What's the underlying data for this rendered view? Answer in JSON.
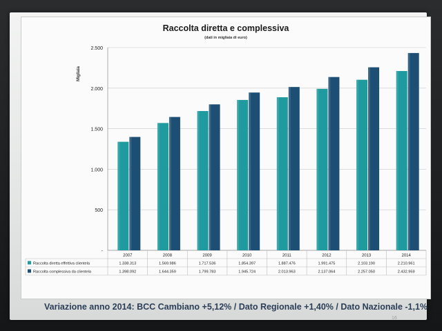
{
  "chart_data": {
    "type": "bar",
    "title": "Raccolta diretta e complessiva",
    "subtitle": "(dati in migliaia di euro)",
    "ylabel": "Migliaia",
    "xlabel": "",
    "ylim": [
      0,
      2500
    ],
    "yticks": [
      0,
      500,
      1000,
      1500,
      2000,
      2500
    ],
    "ytick_labels": [
      "-",
      "500",
      "1.000",
      "1.500",
      "2.000",
      "2.500"
    ],
    "grid": true,
    "legend_placement": "bottom-table",
    "categories": [
      "2007",
      "2008",
      "2009",
      "2010",
      "2011",
      "2012",
      "2013",
      "2014"
    ],
    "series": [
      {
        "name": "Raccolta diretta effettiva clientela",
        "color": "#1f9a9e",
        "values": [
          1338.313,
          1569.986,
          1717.536,
          1854.397,
          1887.476,
          1991.475,
          2103.19,
          2210.961
        ],
        "labels": [
          "1.338.313",
          "1.569.986",
          "1.717.536",
          "1.854.397",
          "1.887.476",
          "1.991.475",
          "2.103.190",
          "2.210.961"
        ]
      },
      {
        "name": "Raccolta complessiva da clientela",
        "color": "#1d4f75",
        "values": [
          1398.092,
          1644.359,
          1799.783,
          1945.724,
          2013.963,
          2137.064,
          2257.05,
          2432.959
        ],
        "labels": [
          "1.398.092",
          "1.644.359",
          "1.799.783",
          "1.945.724",
          "2.013.963",
          "2.137.064",
          "2.257.050",
          "2.432.959"
        ]
      }
    ]
  },
  "footer": "Variazione anno 2014: BCC Cambiano +5,12% / Dato Regionale +1,40% / Dato Nazionale -1,1%",
  "page_number": "16"
}
